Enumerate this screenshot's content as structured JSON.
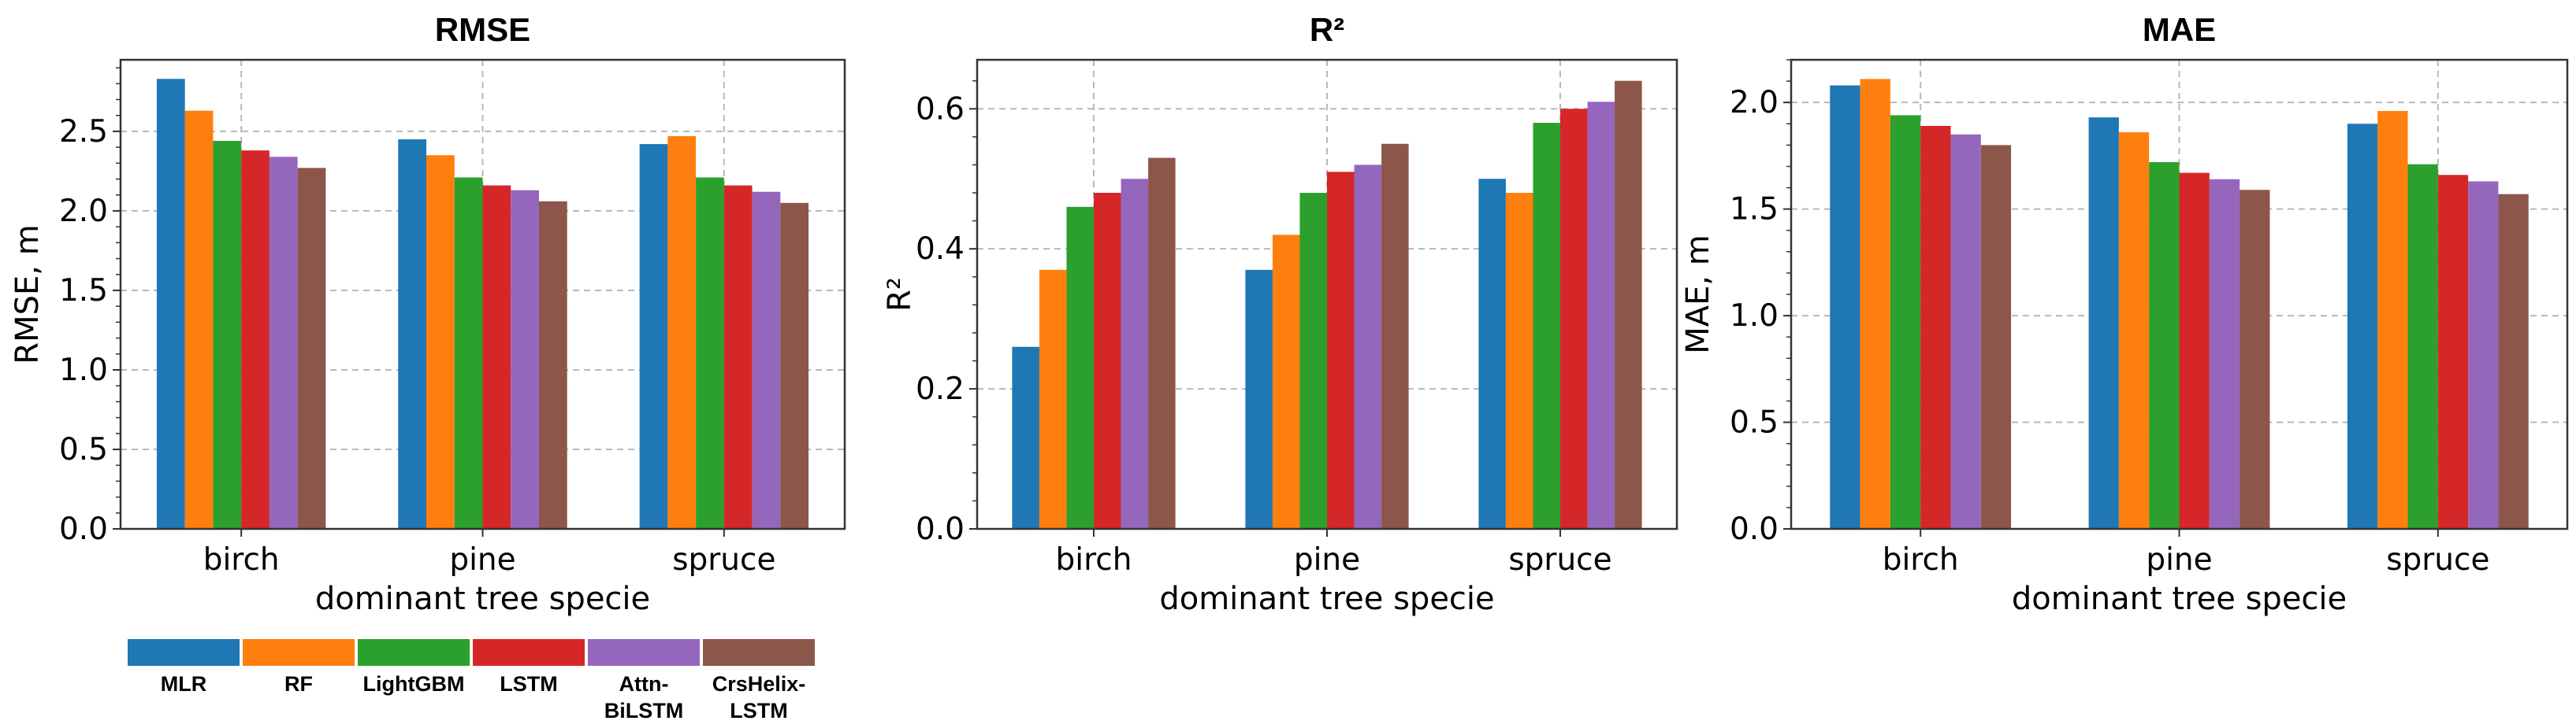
{
  "figure": {
    "legend": [
      {
        "name": "MLR",
        "lines": [
          "MLR"
        ],
        "color": "#1f77b4"
      },
      {
        "name": "RF",
        "lines": [
          "RF"
        ],
        "color": "#ff7f0e"
      },
      {
        "name": "LightGBM",
        "lines": [
          "LightGBM"
        ],
        "color": "#2ca02c"
      },
      {
        "name": "LSTM",
        "lines": [
          "LSTM"
        ],
        "color": "#d62728"
      },
      {
        "name": "Attn-BiLSTM",
        "lines": [
          "Attn-",
          "BiLSTM"
        ],
        "color": "#9467bd"
      },
      {
        "name": "CrsHelix-LSTM",
        "lines": [
          "CrsHelix-",
          "LSTM"
        ],
        "color": "#8c564b"
      }
    ]
  },
  "chart_data": [
    {
      "type": "bar",
      "title": "RMSE",
      "xlabel": "dominant tree specie",
      "ylabel": "RMSE, m",
      "ylim": [
        0,
        2.95
      ],
      "yticks": [
        "0.0",
        "0.5",
        "1.0",
        "1.5",
        "2.0",
        "2.5"
      ],
      "categories": [
        "birch",
        "pine",
        "spruce"
      ],
      "series": [
        {
          "name": "MLR",
          "values": [
            2.83,
            2.45,
            2.42
          ]
        },
        {
          "name": "RF",
          "values": [
            2.63,
            2.35,
            2.47
          ]
        },
        {
          "name": "LightGBM",
          "values": [
            2.44,
            2.21,
            2.21
          ]
        },
        {
          "name": "LSTM",
          "values": [
            2.38,
            2.16,
            2.16
          ]
        },
        {
          "name": "Attn-BiLSTM",
          "values": [
            2.34,
            2.13,
            2.12
          ]
        },
        {
          "name": "CrsHelix-LSTM",
          "values": [
            2.27,
            2.06,
            2.05
          ]
        }
      ]
    },
    {
      "type": "bar",
      "title": "R²",
      "xlabel": "dominant tree specie",
      "ylabel": "R²",
      "ylim": [
        0,
        0.67
      ],
      "yticks": [
        "0.0",
        "0.2",
        "0.4",
        "0.6"
      ],
      "categories": [
        "birch",
        "pine",
        "spruce"
      ],
      "series": [
        {
          "name": "MLR",
          "values": [
            0.26,
            0.37,
            0.5
          ]
        },
        {
          "name": "RF",
          "values": [
            0.37,
            0.42,
            0.48
          ]
        },
        {
          "name": "LightGBM",
          "values": [
            0.46,
            0.48,
            0.58
          ]
        },
        {
          "name": "LSTM",
          "values": [
            0.48,
            0.51,
            0.6
          ]
        },
        {
          "name": "Attn-BiLSTM",
          "values": [
            0.5,
            0.52,
            0.61
          ]
        },
        {
          "name": "CrsHelix-LSTM",
          "values": [
            0.53,
            0.55,
            0.64
          ]
        }
      ]
    },
    {
      "type": "bar",
      "title": "MAE",
      "xlabel": "dominant tree specie",
      "ylabel": "MAE, m",
      "ylim": [
        0,
        2.2
      ],
      "yticks": [
        "0.0",
        "0.5",
        "1.0",
        "1.5",
        "2.0"
      ],
      "categories": [
        "birch",
        "pine",
        "spruce"
      ],
      "series": [
        {
          "name": "MLR",
          "values": [
            2.08,
            1.93,
            1.9
          ]
        },
        {
          "name": "RF",
          "values": [
            2.11,
            1.86,
            1.96
          ]
        },
        {
          "name": "LightGBM",
          "values": [
            1.94,
            1.72,
            1.71
          ]
        },
        {
          "name": "LSTM",
          "values": [
            1.89,
            1.67,
            1.66
          ]
        },
        {
          "name": "Attn-BiLSTM",
          "values": [
            1.85,
            1.64,
            1.63
          ]
        },
        {
          "name": "CrsHelix-LSTM",
          "values": [
            1.8,
            1.59,
            1.57
          ]
        }
      ]
    }
  ]
}
